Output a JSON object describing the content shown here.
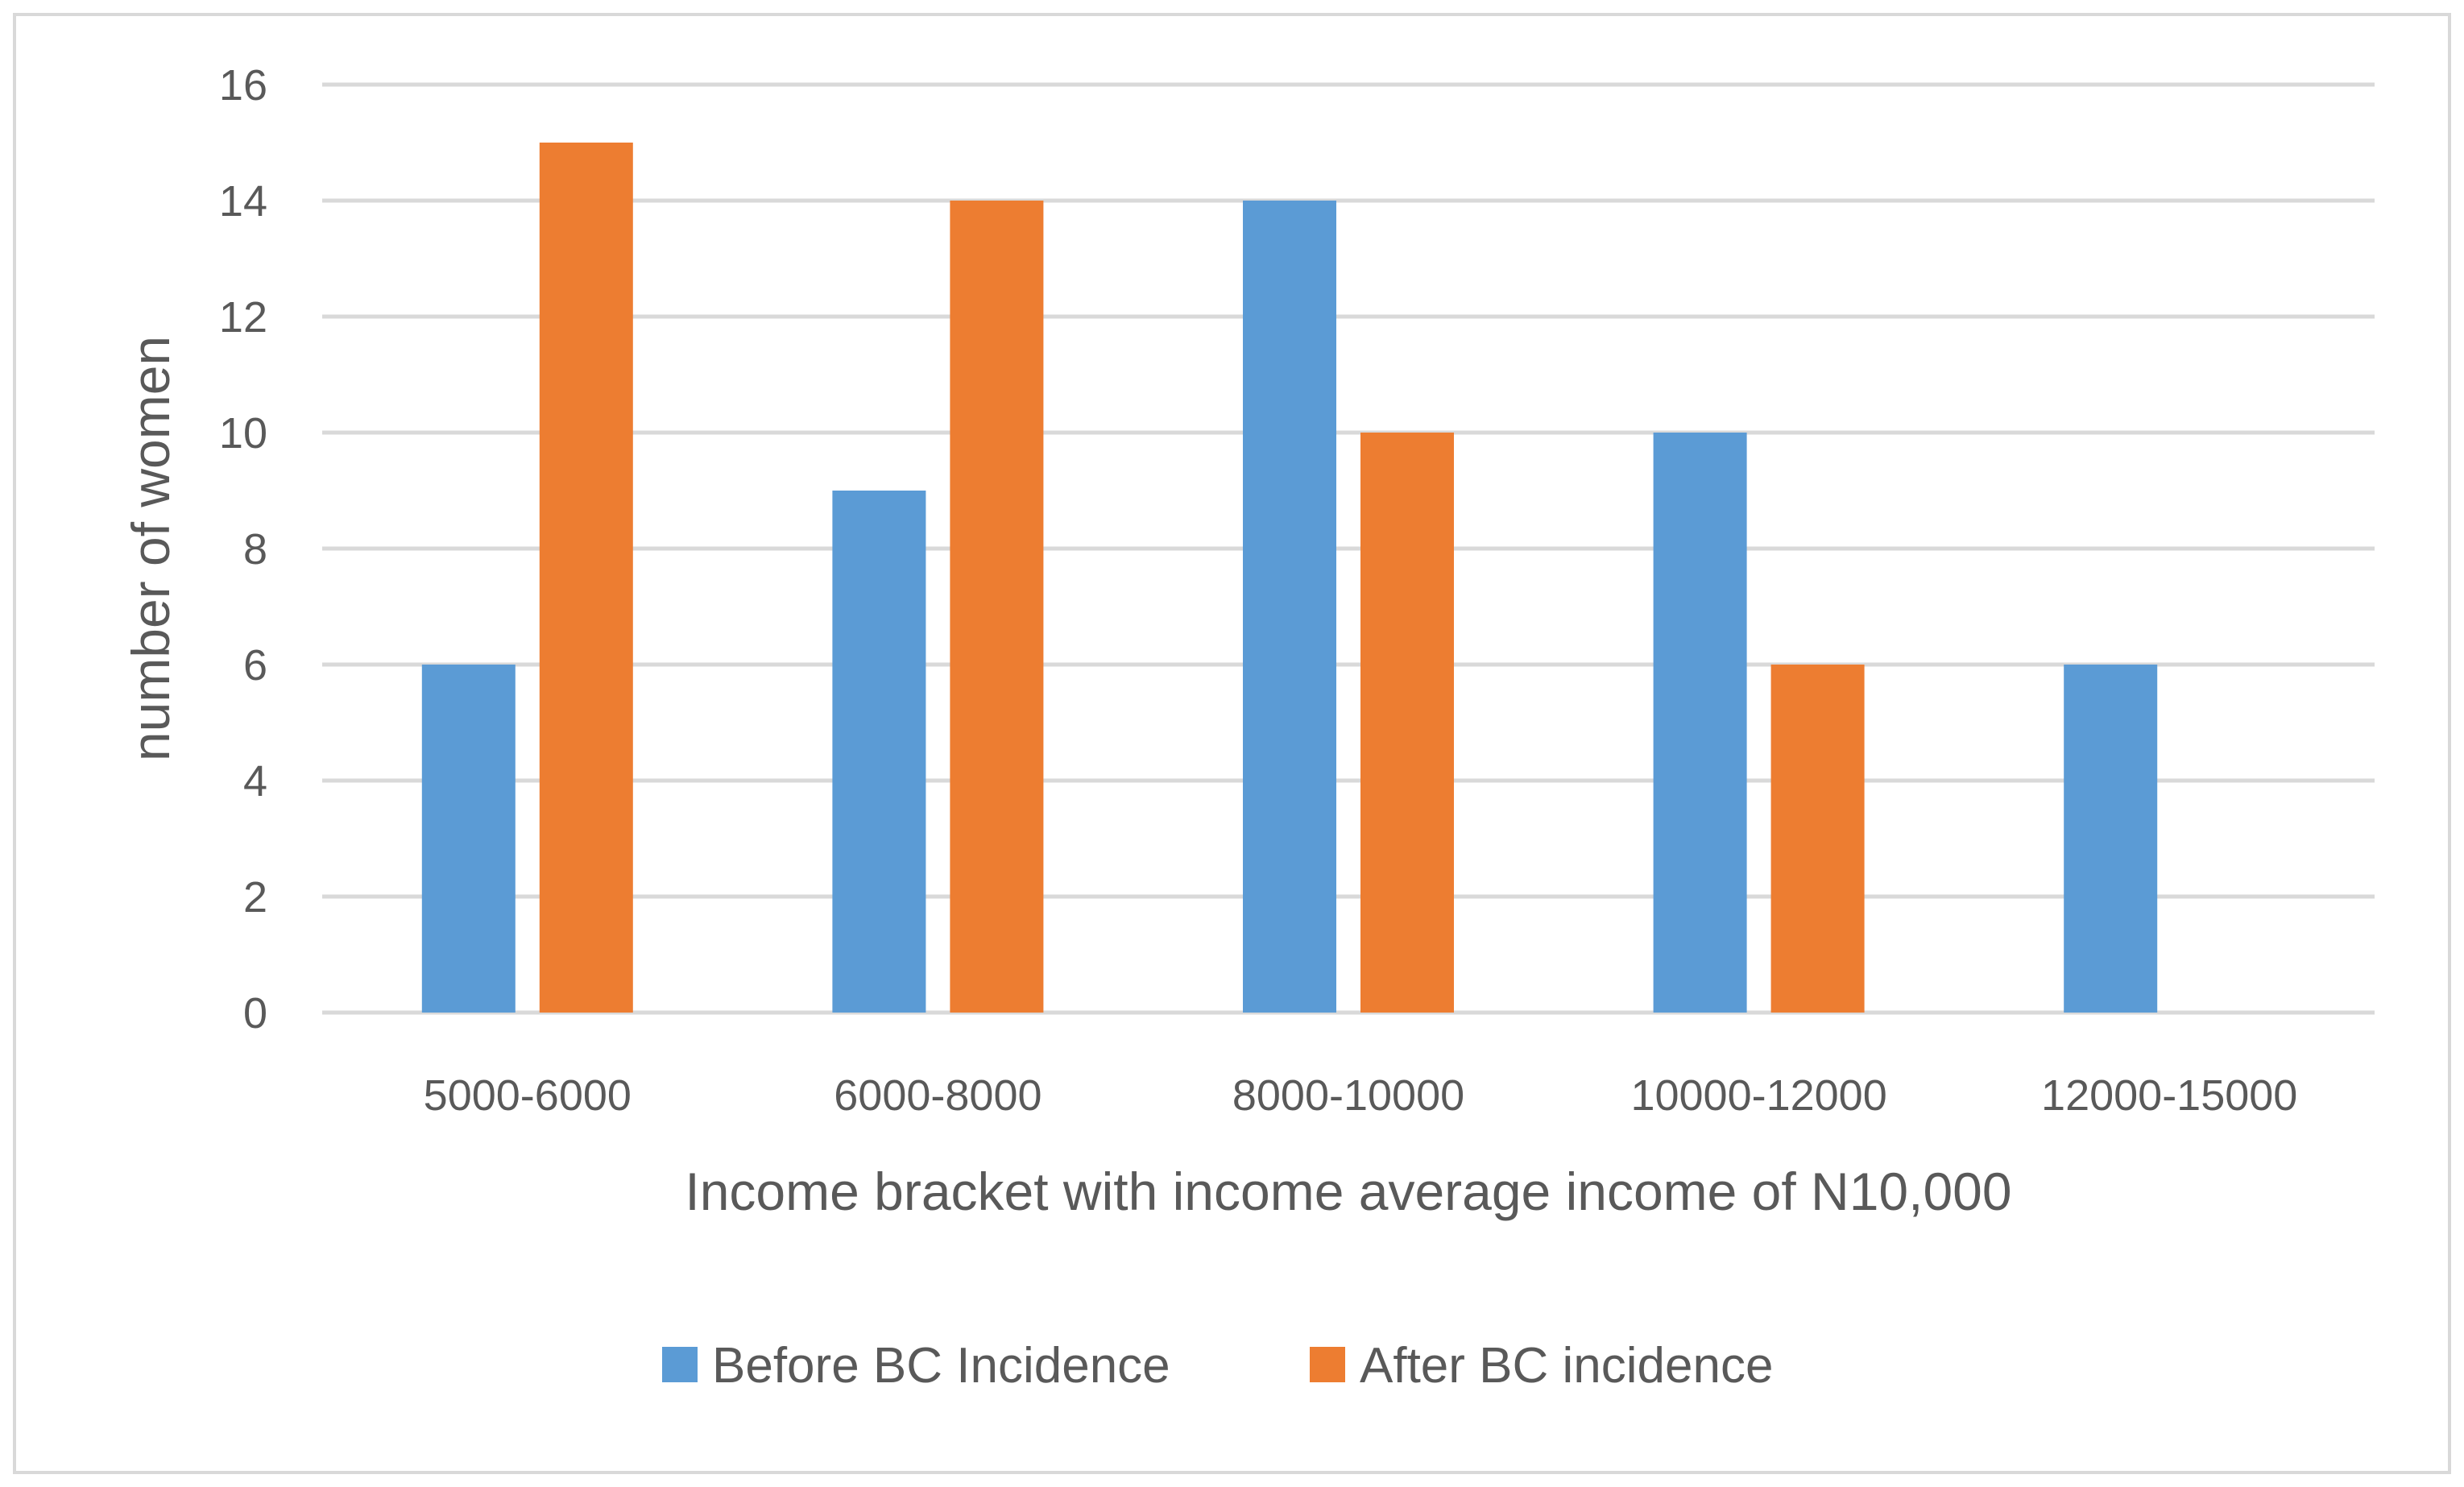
{
  "chart_data": {
    "type": "bar",
    "categories": [
      "5000-6000",
      "6000-8000",
      "8000-10000",
      "10000-12000",
      "12000-15000"
    ],
    "series": [
      {
        "name": "Before BC Incidence",
        "values": [
          6,
          9,
          14,
          10,
          6
        ],
        "color": "#5B9BD5"
      },
      {
        "name": "After BC incidence",
        "values": [
          15,
          14,
          10,
          6,
          0
        ],
        "color": "#ED7D31"
      }
    ],
    "xlabel": "Income bracket with income average income of N10,000",
    "ylabel": "number of women",
    "ylim": [
      0,
      16
    ],
    "yticks": [
      0,
      2,
      4,
      6,
      8,
      10,
      12,
      14,
      16
    ],
    "grid": true,
    "legend_position": "bottom",
    "colors": {
      "gridline": "#D9D9D9",
      "text": "#595959",
      "border": "#D9D9D9"
    }
  }
}
